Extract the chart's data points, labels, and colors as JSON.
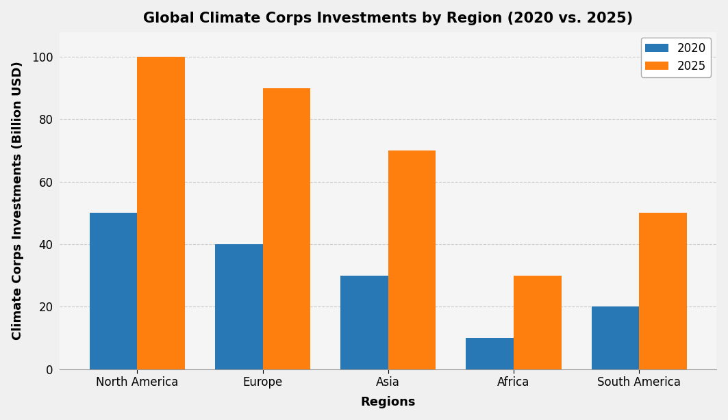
{
  "title": "Global Climate Corps Investments by Region (2020 vs. 2025)",
  "xlabel": "Regions",
  "ylabel": "Climate Corps Investments (Billion USD)",
  "regions": [
    "North America",
    "Europe",
    "Asia",
    "Africa",
    "South America"
  ],
  "values_2020": [
    50,
    40,
    30,
    10,
    20
  ],
  "values_2025": [
    100,
    90,
    70,
    30,
    50
  ],
  "color_2020": "#2878b5",
  "color_2025": "#ff7f0e",
  "legend_labels": [
    "2020",
    "2025"
  ],
  "ylim": [
    0,
    108
  ],
  "yticks": [
    0,
    20,
    40,
    60,
    80,
    100
  ],
  "bar_width": 0.38,
  "title_fontsize": 15,
  "label_fontsize": 13,
  "tick_fontsize": 12,
  "legend_fontsize": 12,
  "figure_facecolor": "#f0f0f0",
  "axes_facecolor": "#f5f5f5",
  "grid_color": "#cccccc",
  "grid_linestyle": "--",
  "grid_linewidth": 0.8,
  "bar_edgecolor": "none",
  "legend_edgecolor": "#aaaaaa"
}
